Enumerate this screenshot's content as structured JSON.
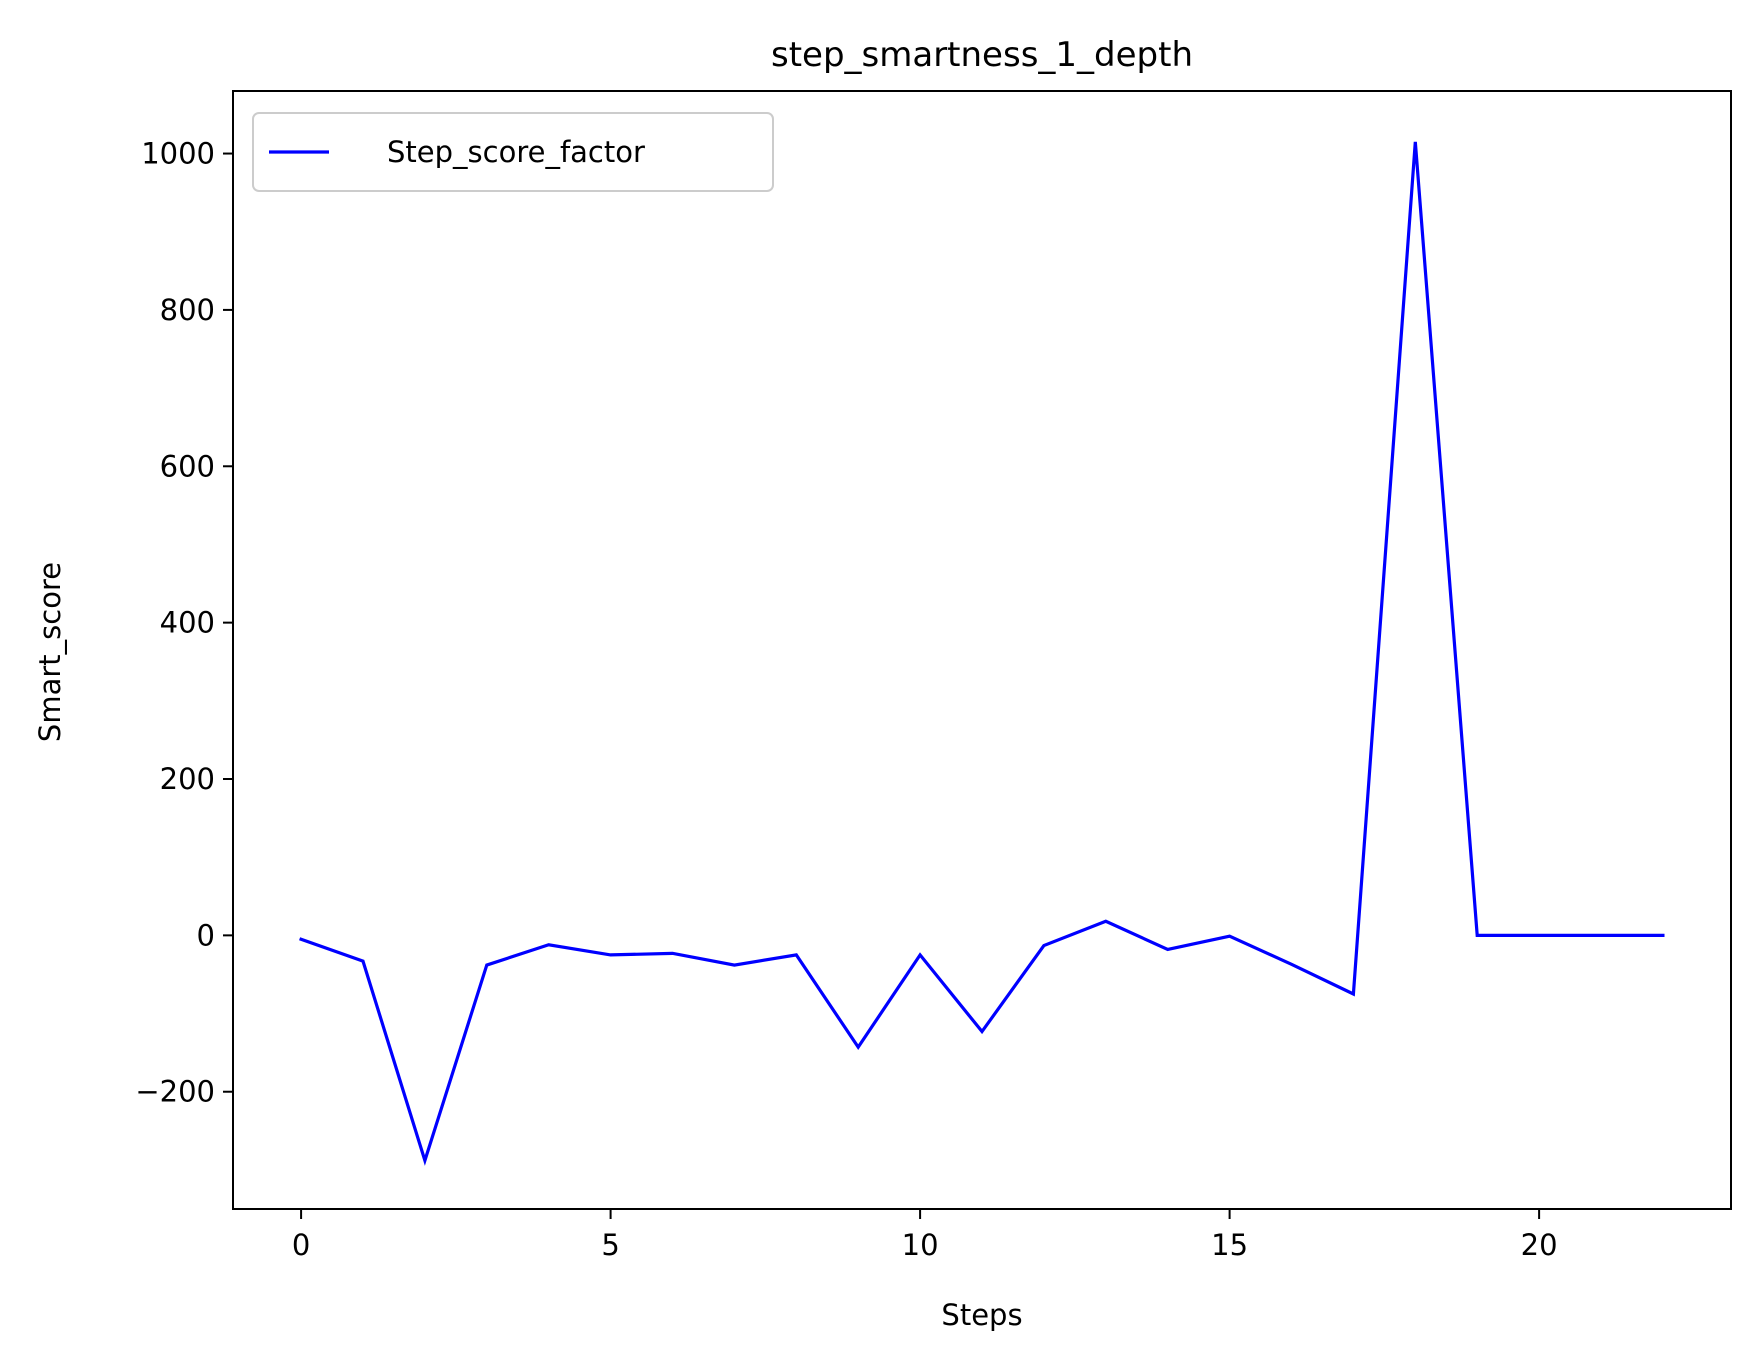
{
  "chart_data": {
    "type": "line",
    "title": "step_smartness_1_depth",
    "xlabel": "Steps",
    "ylabel": "Smart_score",
    "xlim": [
      -1.1,
      23.1
    ],
    "ylim": [
      -350,
      1080
    ],
    "xticks": [
      0,
      5,
      10,
      15,
      20
    ],
    "xtick_labels": [
      "0",
      "5",
      "10",
      "15",
      "20"
    ],
    "yticks": [
      -200,
      0,
      200,
      400,
      600,
      800,
      1000
    ],
    "ytick_labels": [
      "−200",
      "0",
      "200",
      "400",
      "600",
      "800",
      "1000"
    ],
    "grid": false,
    "legend_position": "top-left",
    "series": [
      {
        "name": "Step_score_factor",
        "color": "#0000ff",
        "x": [
          0,
          1,
          2,
          3,
          4,
          5,
          6,
          7,
          8,
          9,
          10,
          11,
          12,
          13,
          14,
          15,
          16,
          17,
          18,
          19,
          20,
          21,
          22
        ],
        "y": [
          -5,
          -33,
          -288,
          -38,
          -12,
          -25,
          -23,
          -38,
          -25,
          -143,
          -25,
          -123,
          -13,
          18,
          -18,
          -1,
          -37,
          -75,
          1015,
          0,
          0,
          0,
          0
        ]
      }
    ]
  }
}
